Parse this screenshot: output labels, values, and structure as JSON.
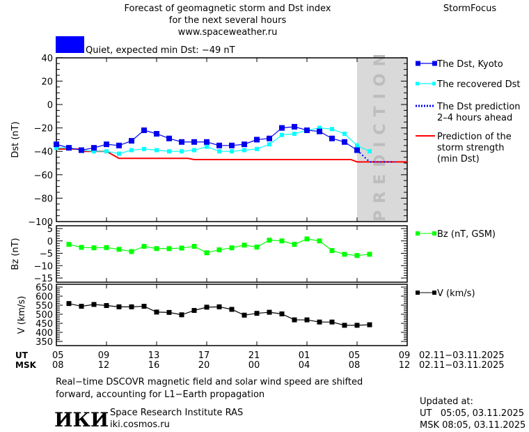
{
  "header": {
    "title_lines": [
      "Forecast of geomagnetic storm and Dst index",
      "for the next several hours",
      "www.spaceweather.ru"
    ],
    "brand": "StormFocus",
    "status_color": "#0000ff",
    "status_text": "Quiet, expected min Dst: −49 nT"
  },
  "prediction_label": "PREDICTION",
  "colors": {
    "dst": "#0000ee",
    "recovered": "#00ffff",
    "prediction_dots": "#0000ff",
    "storm": "#ff0000",
    "bz": "#00ff00",
    "v": "#000000",
    "prediction_bg": "#d9d9d9"
  },
  "chart_data": [
    {
      "type": "line",
      "ylabel": "Dst (nT)",
      "ylim": [
        -100,
        40
      ],
      "yticks": [
        40,
        20,
        0,
        -20,
        -40,
        -60,
        -80,
        -100
      ],
      "x_hours_range": [
        0,
        28
      ],
      "prediction_region_hours": [
        24,
        28
      ],
      "series": [
        {
          "name": "The Dst, Kyoto",
          "x": [
            0,
            1,
            2,
            3,
            4,
            5,
            6,
            7,
            8,
            9,
            10,
            11,
            12,
            13,
            14,
            15,
            16,
            17,
            18,
            19,
            20,
            21,
            22,
            23,
            24
          ],
          "values": [
            -34,
            -37,
            -39,
            -37,
            -34,
            -35,
            -31,
            -22,
            -25,
            -29,
            -32,
            -32,
            -32,
            -35,
            -35,
            -34,
            -30,
            -29,
            -20,
            -19,
            -22,
            -23,
            -29,
            -32,
            -39
          ]
        },
        {
          "name": "The recovered Dst",
          "x": [
            0,
            1,
            2,
            3,
            4,
            5,
            6,
            7,
            8,
            9,
            10,
            11,
            12,
            13,
            14,
            15,
            16,
            17,
            18,
            19,
            20,
            21,
            22,
            23,
            24,
            25
          ],
          "values": [
            -37,
            -37,
            -39,
            -40,
            -40,
            -42,
            -39,
            -38,
            -39,
            -40,
            -40,
            -39,
            -36,
            -40,
            -40,
            -39,
            -38,
            -34,
            -26,
            -25,
            -22,
            -20,
            -21,
            -25,
            -35,
            -40
          ]
        },
        {
          "name": "The Dst prediction 2–4 hours ahead",
          "x": [
            24,
            25,
            26,
            27
          ],
          "values": [
            -39,
            -49,
            -49,
            -49
          ]
        },
        {
          "name": "Prediction of the storm strength (min Dst)",
          "x": [
            0,
            1.9,
            2,
            4,
            5,
            10.5,
            11,
            23.5,
            24,
            28
          ],
          "values": [
            -38,
            -38,
            -40,
            -40,
            -46,
            -46,
            -47,
            -47,
            -49,
            -49
          ]
        }
      ],
      "legend": [
        "The Dst, Kyoto",
        "The recovered Dst",
        "The Dst prediction",
        "2–4 hours ahead",
        "Prediction of the",
        "storm strength",
        "(min Dst)"
      ]
    },
    {
      "type": "line",
      "ylabel": "Bz (nT)",
      "ylim": [
        -15,
        5
      ],
      "yticks": [
        5,
        0,
        -5,
        -10,
        -15
      ],
      "series": [
        {
          "name": "Bz (nT, GSM)",
          "x": [
            1,
            2,
            3,
            4,
            5,
            6,
            7,
            8,
            9,
            10,
            11,
            12,
            13,
            14,
            15,
            16,
            17,
            18,
            19,
            20,
            21,
            22,
            23,
            24,
            25
          ],
          "values": [
            -1.4,
            -2.6,
            -2.8,
            -2.7,
            -3.4,
            -4.3,
            -2.2,
            -3.1,
            -3.1,
            -2.9,
            -2.2,
            -4.8,
            -3.6,
            -2.8,
            -1.7,
            -2.5,
            0.3,
            0,
            -1.4,
            0.8,
            0,
            -3.9,
            -5.4,
            -5.9,
            -5.4
          ]
        }
      ]
    },
    {
      "type": "line",
      "ylabel": "V (km/s)",
      "ylim": [
        350,
        650
      ],
      "yticks": [
        650,
        600,
        550,
        500,
        450,
        400,
        350
      ],
      "series": [
        {
          "name": "V (km/s)",
          "x": [
            1,
            2,
            3,
            4,
            5,
            6,
            7,
            8,
            9,
            10,
            11,
            12,
            13,
            14,
            15,
            16,
            17,
            18,
            19,
            20,
            21,
            22,
            23,
            24,
            25
          ],
          "values": [
            559,
            544,
            554,
            548,
            541,
            541,
            544,
            512,
            510,
            497,
            521,
            539,
            541,
            527,
            495,
            505,
            511,
            502,
            469,
            469,
            457,
            457,
            439,
            439,
            442
          ]
        }
      ]
    }
  ],
  "xaxis": {
    "ut_label": "UT",
    "msk_label": "MSK",
    "ut_ticks": [
      "05",
      "09",
      "13",
      "17",
      "21",
      "01",
      "05",
      "09"
    ],
    "msk_ticks": [
      "08",
      "12",
      "16",
      "20",
      "00",
      "04",
      "08",
      "12"
    ],
    "date_range": "02.11−03.11.2025"
  },
  "footer": {
    "note_lines": [
      "Real−time DSCOVR magnetic field and solar wind speed are shifted",
      "forward, accounting for L1−Earth propagation"
    ],
    "logo": "ИКИ",
    "institute": "Space Research Institute RAS",
    "site": "iki.cosmos.ru",
    "updated_label": "Updated at:",
    "updated_ut": "UT   05:05, 03.11.2025",
    "updated_msk": "MSK 08:05, 03.11.2025"
  }
}
